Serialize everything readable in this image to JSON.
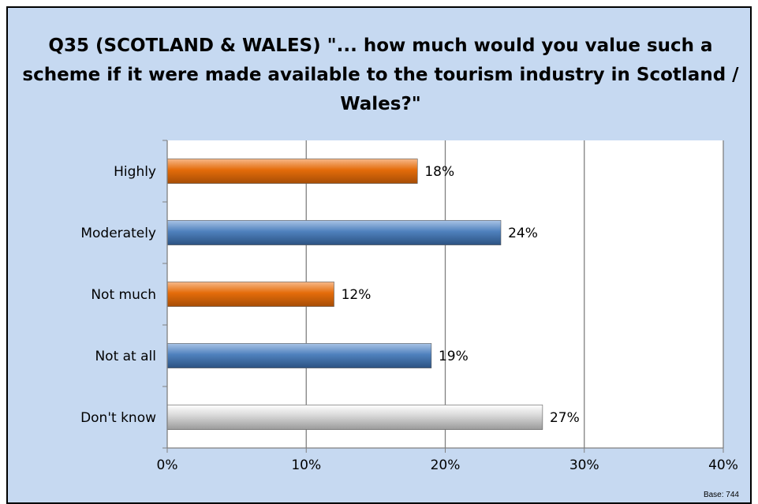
{
  "chart_data": {
    "type": "bar",
    "orientation": "horizontal",
    "title": "Q35 (SCOTLAND & WALES) \"... how much would you value such a scheme if it were made available to the tourism industry in Scotland / Wales?\"",
    "categories": [
      "Highly",
      "Moderately",
      "Not much",
      "Not at all",
      "Don't know"
    ],
    "values": [
      18,
      24,
      12,
      19,
      27
    ],
    "value_labels": [
      "18%",
      "24%",
      "12%",
      "19%",
      "27%"
    ],
    "bar_colors": [
      "orange",
      "blue",
      "orange",
      "blue",
      "grey"
    ],
    "xlim": [
      0,
      40
    ],
    "xticks": [
      0,
      10,
      20,
      30,
      40
    ],
    "xtick_labels": [
      "0%",
      "10%",
      "20%",
      "30%",
      "40%"
    ],
    "xlabel": "",
    "ylabel": "",
    "grid": "vertical",
    "legend": "none"
  },
  "colors": {
    "background": "#c6d9f1",
    "plot_area": "#ffffff",
    "gridline": "#808080",
    "orange": "#e46c0a",
    "blue": "#4f81bd",
    "grey": "#c8c8c8"
  },
  "footnote": "Base: 744"
}
